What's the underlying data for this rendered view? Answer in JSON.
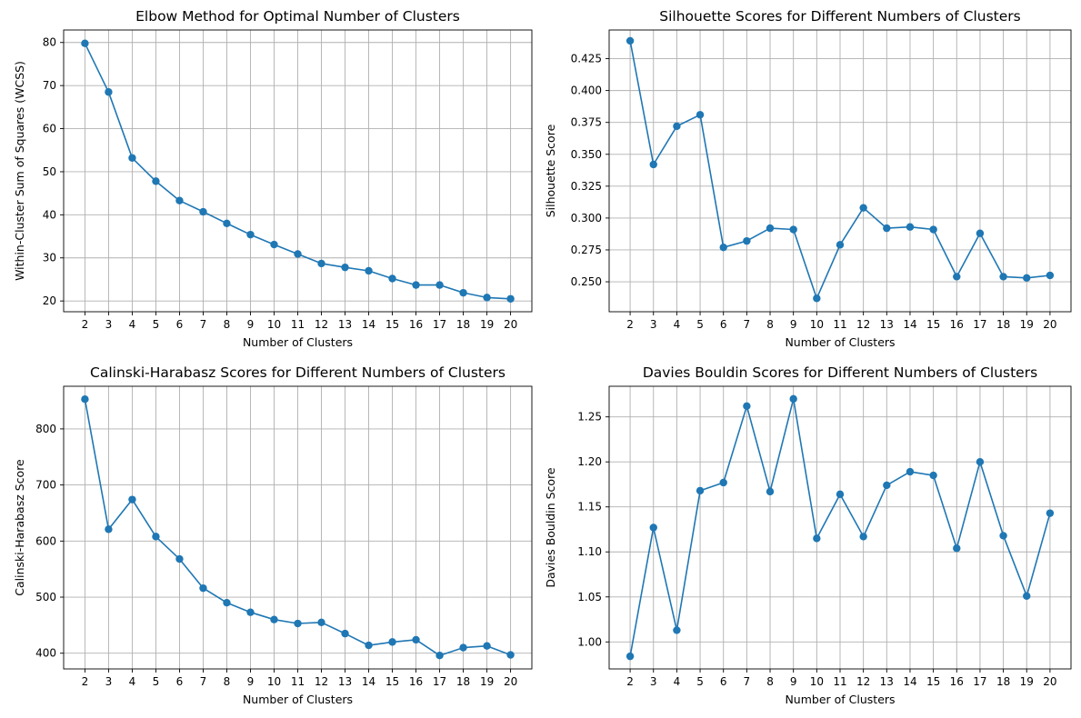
{
  "figure": {
    "background": "#ffffff",
    "series_color": "#1f77b4",
    "grid_color": "#b0b0b0"
  },
  "chart_data": [
    {
      "type": "line",
      "title": "Elbow Method for Optimal Number of Clusters",
      "xlabel": "Number of Clusters",
      "ylabel": "Within-Cluster Sum of Squares (WCSS)",
      "grid": true,
      "marker": "circle",
      "x": [
        2,
        3,
        4,
        5,
        6,
        7,
        8,
        9,
        10,
        11,
        12,
        13,
        14,
        15,
        16,
        17,
        18,
        19,
        20
      ],
      "y": [
        79.8,
        68.5,
        53.2,
        47.8,
        43.3,
        40.7,
        38.0,
        35.4,
        33.1,
        30.9,
        28.7,
        27.8,
        27.0,
        25.2,
        23.7,
        23.7,
        21.9,
        20.8,
        20.5
      ],
      "xlim": [
        1.1,
        20.9
      ],
      "ylim": [
        17.5,
        82.9
      ],
      "xticks": [
        2,
        3,
        4,
        5,
        6,
        7,
        8,
        9,
        10,
        11,
        12,
        13,
        14,
        15,
        16,
        17,
        18,
        19,
        20
      ],
      "yticks": [
        20,
        30,
        40,
        50,
        60,
        70,
        80
      ],
      "ytick_labels": [
        "20",
        "30",
        "40",
        "50",
        "60",
        "70",
        "80"
      ]
    },
    {
      "type": "line",
      "title": "Silhouette Scores for Different Numbers of Clusters",
      "xlabel": "Number of Clusters",
      "ylabel": "Silhouette Score",
      "grid": true,
      "marker": "circle",
      "x": [
        2,
        3,
        4,
        5,
        6,
        7,
        8,
        9,
        10,
        11,
        12,
        13,
        14,
        15,
        16,
        17,
        18,
        19,
        20
      ],
      "y": [
        0.439,
        0.342,
        0.372,
        0.381,
        0.277,
        0.282,
        0.292,
        0.291,
        0.237,
        0.279,
        0.308,
        0.292,
        0.293,
        0.291,
        0.254,
        0.288,
        0.254,
        0.253,
        0.255
      ],
      "xlim": [
        1.1,
        20.9
      ],
      "ylim": [
        0.2265,
        0.4475
      ],
      "xticks": [
        2,
        3,
        4,
        5,
        6,
        7,
        8,
        9,
        10,
        11,
        12,
        13,
        14,
        15,
        16,
        17,
        18,
        19,
        20
      ],
      "yticks": [
        0.25,
        0.275,
        0.3,
        0.325,
        0.35,
        0.375,
        0.4,
        0.425
      ],
      "ytick_labels": [
        "0.250",
        "0.275",
        "0.300",
        "0.325",
        "0.350",
        "0.375",
        "0.400",
        "0.425"
      ]
    },
    {
      "type": "line",
      "title": "Calinski-Harabasz Scores for Different Numbers of Clusters",
      "xlabel": "Number of Clusters",
      "ylabel": "Calinski-Harabasz Score",
      "grid": true,
      "marker": "circle",
      "x": [
        2,
        3,
        4,
        5,
        6,
        7,
        8,
        9,
        10,
        11,
        12,
        13,
        14,
        15,
        16,
        17,
        18,
        19,
        20
      ],
      "y": [
        853,
        621,
        674,
        608,
        568,
        516,
        490,
        473,
        460,
        453,
        455,
        435,
        414,
        420,
        424,
        396,
        410,
        413,
        397
      ],
      "xlim": [
        1.1,
        20.9
      ],
      "ylim": [
        372,
        876
      ],
      "xticks": [
        2,
        3,
        4,
        5,
        6,
        7,
        8,
        9,
        10,
        11,
        12,
        13,
        14,
        15,
        16,
        17,
        18,
        19,
        20
      ],
      "yticks": [
        400,
        500,
        600,
        700,
        800
      ],
      "ytick_labels": [
        "400",
        "500",
        "600",
        "700",
        "800"
      ]
    },
    {
      "type": "line",
      "title": "Davies Bouldin Scores for Different Numbers of Clusters",
      "xlabel": "Number of Clusters",
      "ylabel": "Davies Bouldin Score",
      "grid": true,
      "marker": "circle",
      "x": [
        2,
        3,
        4,
        5,
        6,
        7,
        8,
        9,
        10,
        11,
        12,
        13,
        14,
        15,
        16,
        17,
        18,
        19,
        20
      ],
      "y": [
        0.984,
        1.127,
        1.013,
        1.168,
        1.177,
        1.262,
        1.167,
        1.27,
        1.115,
        1.164,
        1.117,
        1.174,
        1.189,
        1.185,
        1.104,
        1.2,
        1.118,
        1.051,
        1.143
      ],
      "xlim": [
        1.1,
        20.9
      ],
      "ylim": [
        0.97,
        1.284
      ],
      "xticks": [
        2,
        3,
        4,
        5,
        6,
        7,
        8,
        9,
        10,
        11,
        12,
        13,
        14,
        15,
        16,
        17,
        18,
        19,
        20
      ],
      "yticks": [
        1.0,
        1.05,
        1.1,
        1.15,
        1.2,
        1.25
      ],
      "ytick_labels": [
        "1.00",
        "1.05",
        "1.10",
        "1.15",
        "1.20",
        "1.25"
      ]
    }
  ]
}
